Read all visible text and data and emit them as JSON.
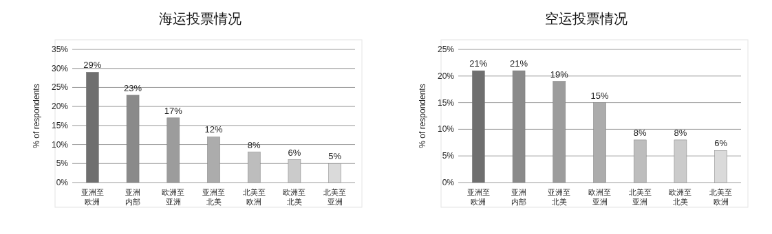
{
  "chart_data": [
    {
      "type": "bar",
      "title": "海运投票情况",
      "ylabel": "% of respondents",
      "categories": [
        "亚洲至欧洲",
        "亚洲内部",
        "欧洲至亚洲",
        "亚洲至北美",
        "北美至欧洲",
        "欧洲至北美",
        "北美至亚洲"
      ],
      "values": [
        29,
        23,
        17,
        12,
        8,
        6,
        5
      ],
      "value_labels": [
        "29%",
        "23%",
        "17%",
        "12%",
        "8%",
        "6%",
        "5%"
      ],
      "colors": [
        "#6f6f6f",
        "#8a8a8a",
        "#9c9c9c",
        "#acacac",
        "#bdbdbd",
        "#cbcbcb",
        "#dadada"
      ],
      "ylim": [
        0,
        35
      ],
      "yticks": [
        {
          "value": 0,
          "label": "0%"
        },
        {
          "value": 5,
          "label": "5%"
        },
        {
          "value": 10,
          "label": "10%"
        },
        {
          "value": 15,
          "label": "15%"
        },
        {
          "value": 20,
          "label": "20%"
        },
        {
          "value": 25,
          "label": "25%"
        },
        {
          "value": 30,
          "label": "30%"
        },
        {
          "value": 35,
          "label": "35%"
        }
      ],
      "grid": "y"
    },
    {
      "type": "bar",
      "title": "空运投票情况",
      "ylabel": "% of respondents",
      "categories": [
        "亚洲至欧洲",
        "亚洲内部",
        "亚洲至北美",
        "欧洲至亚洲",
        "北美至亚洲",
        "欧洲至北美",
        "北美至欧洲"
      ],
      "values": [
        21,
        21,
        19,
        15,
        8,
        8,
        6
      ],
      "value_labels": [
        "21%",
        "21%",
        "19%",
        "15%",
        "8%",
        "8%",
        "6%"
      ],
      "colors": [
        "#6f6f6f",
        "#8a8a8a",
        "#9c9c9c",
        "#acacac",
        "#bdbdbd",
        "#cbcbcb",
        "#dadada"
      ],
      "ylim": [
        0,
        25
      ],
      "yticks": [
        {
          "value": 0,
          "label": "0%"
        },
        {
          "value": 5,
          "label": "5%"
        },
        {
          "value": 10,
          "label": "10%"
        },
        {
          "value": 15,
          "label": "15%"
        },
        {
          "value": 20,
          "label": "20%"
        },
        {
          "value": 25,
          "label": "25%"
        }
      ],
      "grid": "y"
    }
  ]
}
